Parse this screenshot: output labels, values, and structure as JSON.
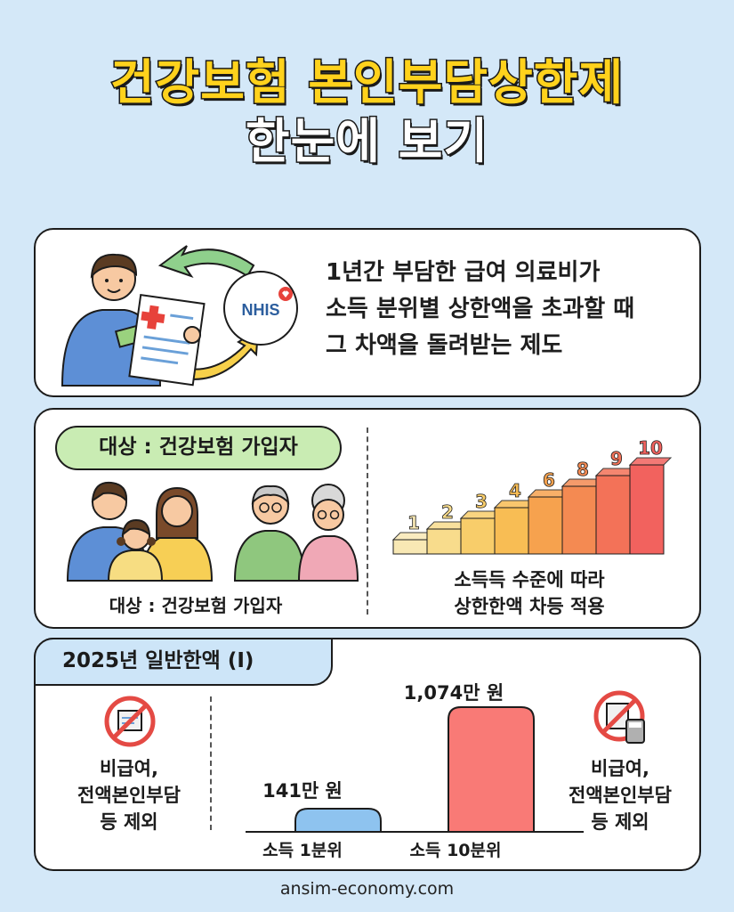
{
  "title": {
    "line1": "건강보험 본인부담상한제",
    "line2": "한눈에 보기"
  },
  "intro": {
    "logo_text": "NHIS",
    "desc_lines": [
      "1년간 부담한 급여 의료비가",
      "소득 분위별 상한액을 초과할 때",
      "그 차액을 돌려받는 제도"
    ]
  },
  "target": {
    "pill_label": "대상 : 건강보험 가입자",
    "family_caption": "대상 : 건강보험 가입자",
    "stairs_caption": [
      "소득득 수준에 따라",
      "상한한액 차등 적용"
    ],
    "stair_numbers": [
      "1",
      "2",
      "3",
      "4",
      "6",
      "8",
      "9",
      "10"
    ],
    "stair_colors": [
      "#f8e8b4",
      "#f8dc8c",
      "#f8cd6a",
      "#f8bd54",
      "#f6a24e",
      "#f48a52",
      "#f37258",
      "#f2625e"
    ]
  },
  "limits": {
    "tab_label": "2025년 일반한액 (Ⅰ)",
    "left_note": [
      "비급여,",
      "전액본인부담",
      "등 제외"
    ],
    "right_note": [
      "비급여,",
      "전액본인부담",
      "등 제외"
    ],
    "chart_data": {
      "type": "bar",
      "categories": [
        "소득 1분위",
        "소득 10분위"
      ],
      "values": [
        141,
        1074
      ],
      "value_labels": [
        "141만 원",
        "1,074만 원"
      ],
      "colors": [
        "#8ec3ef",
        "#f97a76"
      ]
    }
  },
  "footer": "ansim-economy.com"
}
